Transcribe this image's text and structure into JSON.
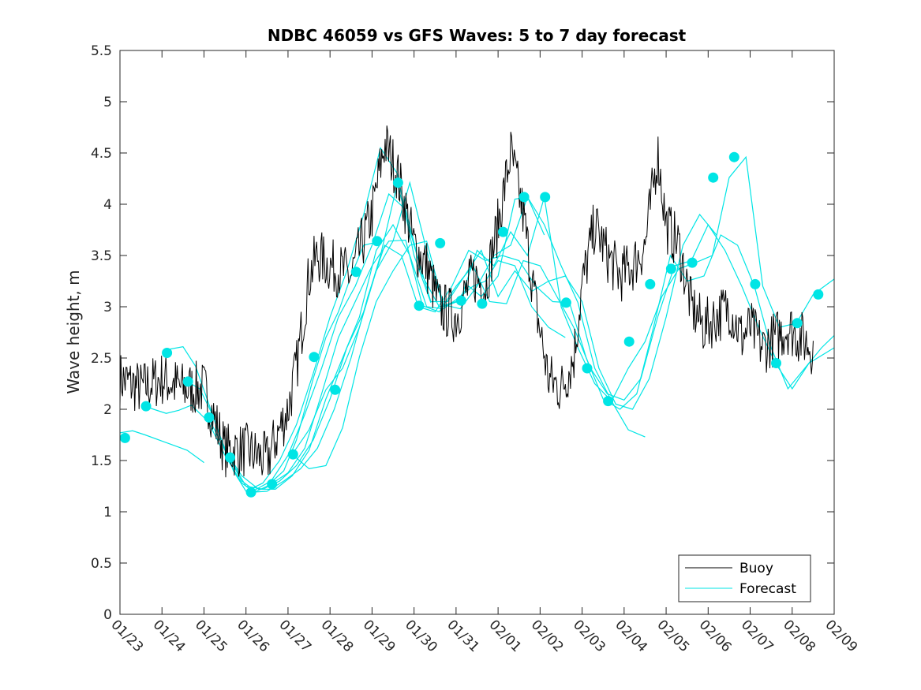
{
  "chart_data": {
    "type": "line",
    "title": "NDBC 46059 vs GFS Waves: 5 to 7 day forecast",
    "xlabel": "",
    "ylabel": "Wave height, m",
    "xlim": [
      0,
      17
    ],
    "ylim": [
      0,
      5.5
    ],
    "grid": false,
    "legend_position": "bottom-right",
    "x_tick_labels": [
      "01/23",
      "01/24",
      "01/25",
      "01/26",
      "01/27",
      "01/28",
      "01/29",
      "01/30",
      "01/31",
      "02/01",
      "02/02",
      "02/03",
      "02/04",
      "02/05",
      "02/06",
      "02/07",
      "02/08",
      "02/09"
    ],
    "y_ticks": [
      0,
      0.5,
      1,
      1.5,
      2,
      2.5,
      3,
      3.5,
      4,
      4.5,
      5,
      5.5
    ],
    "y_tick_labels": [
      "0",
      "0.5",
      "1",
      "1.5",
      "2",
      "2.5",
      "3",
      "3.5",
      "4",
      "4.5",
      "5",
      "5.5"
    ],
    "colors": {
      "buoy": "#000000",
      "forecast": "#00e5e5",
      "axis": "#262626"
    },
    "series": [
      {
        "name": "Buoy",
        "x_days": [
          0,
          0.5,
          1,
          1.5,
          2,
          2.5,
          3,
          3.5,
          4,
          4.2,
          4.5,
          4.7,
          5,
          5.5,
          6,
          6.3,
          6.6,
          7,
          7.3,
          7.6,
          8,
          8.4,
          8.7,
          9,
          9.3,
          9.6,
          9.9,
          10.2,
          10.5,
          10.8,
          11,
          11.3,
          11.6,
          11.9,
          12.2,
          12.5,
          12.8,
          13,
          13.3,
          13.6,
          13.9,
          14.2,
          14.5,
          14.8,
          15,
          15.3,
          15.6,
          15.9,
          16.2,
          16.5
        ],
        "values": [
          2.3,
          2.2,
          2.3,
          2.2,
          2.2,
          1.6,
          1.6,
          1.5,
          2.0,
          2.4,
          3.3,
          3.5,
          3.4,
          3.3,
          3.9,
          4.6,
          4.3,
          3.6,
          3.4,
          3.0,
          2.9,
          3.3,
          3.2,
          3.8,
          4.5,
          3.9,
          3.0,
          2.3,
          2.2,
          2.5,
          3.2,
          3.8,
          3.5,
          3.3,
          3.4,
          3.6,
          4.5,
          3.8,
          3.6,
          3.0,
          2.8,
          2.9,
          3.0,
          2.7,
          2.8,
          2.6,
          2.7,
          2.8,
          2.7,
          2.6
        ]
      }
    ],
    "forecast_runs": [
      {
        "x_days": [
          0,
          0.3,
          0.6,
          1.0,
          1.4,
          1.6,
          2.0
        ],
        "values": [
          1.77,
          1.79,
          1.75,
          1.69,
          1.63,
          1.6,
          1.48
        ]
      },
      {
        "x_days": [
          0.6,
          0.8,
          1.1,
          1.4,
          1.7,
          2.1,
          2.5,
          2.9,
          3.2,
          3.5,
          3.9,
          4.2,
          4.6,
          4.9,
          5.2,
          5.5,
          5.8,
          6.2
        ],
        "values": [
          2.03,
          2.0,
          1.96,
          1.99,
          2.04,
          1.88,
          1.55,
          1.28,
          1.19,
          1.25,
          1.4,
          1.7,
          2.3,
          2.7,
          2.95,
          3.3,
          3.6,
          3.64
        ]
      },
      {
        "x_days": [
          1.1,
          1.5,
          1.8,
          2.1,
          2.4,
          2.7,
          3.0,
          3.4,
          3.8,
          4.2,
          4.6,
          5.0,
          5.4,
          5.8,
          6.2,
          6.6,
          7.0,
          7.4
        ],
        "values": [
          2.58,
          2.61,
          2.42,
          2.07,
          1.72,
          1.4,
          1.2,
          1.28,
          1.5,
          1.85,
          2.35,
          2.9,
          3.35,
          3.9,
          4.55,
          4.3,
          3.5,
          3.04
        ]
      },
      {
        "x_days": [
          1.6,
          1.9,
          2.2,
          2.5,
          2.9,
          3.2,
          3.6,
          4.0,
          4.4,
          4.8,
          5.2,
          5.6,
          6.0,
          6.4,
          6.8,
          7.2,
          7.6,
          8.0,
          8.3,
          8.6,
          9.0,
          9.4,
          9.7,
          10.1
        ],
        "values": [
          2.27,
          2.2,
          1.95,
          1.6,
          1.3,
          1.21,
          1.3,
          1.55,
          1.95,
          2.4,
          2.9,
          3.2,
          3.6,
          4.1,
          3.95,
          3.3,
          3.0,
          3.05,
          3.2,
          3.1,
          3.3,
          4.05,
          4.07,
          3.7
        ]
      },
      {
        "x_days": [
          2.1,
          2.5,
          2.9,
          3.3,
          3.7,
          4.1,
          4.5,
          4.9,
          5.3,
          5.7,
          6.1,
          6.5,
          6.9,
          7.3,
          7.7,
          8.1,
          8.4,
          8.7,
          9.0,
          9.4,
          9.8,
          10.2,
          10.6
        ],
        "values": [
          1.92,
          1.6,
          1.35,
          1.22,
          1.22,
          1.35,
          1.6,
          2.1,
          2.5,
          2.9,
          3.55,
          3.8,
          3.5,
          3.0,
          2.98,
          3.1,
          3.2,
          3.25,
          3.45,
          3.4,
          3.0,
          2.8,
          2.7
        ]
      },
      {
        "x_days": [
          2.6,
          3.0,
          3.4,
          3.8,
          4.2,
          4.6,
          5.0,
          5.4,
          5.8,
          6.2,
          6.6,
          7.0,
          7.4,
          7.8,
          8.2,
          8.6,
          9.0,
          9.4,
          9.8,
          10.2,
          10.6,
          11.0,
          11.4,
          11.8,
          12.2,
          12.6,
          13.0,
          13.4,
          13.8,
          14.2
        ],
        "values": [
          1.53,
          1.25,
          1.22,
          1.3,
          1.45,
          1.7,
          2.1,
          2.6,
          2.95,
          3.5,
          4.2,
          3.6,
          3.05,
          3.05,
          3.3,
          3.55,
          3.1,
          3.35,
          3.15,
          3.25,
          3.3,
          3.05,
          2.4,
          2.05,
          2.0,
          2.3,
          2.9,
          3.6,
          3.9,
          3.7
        ]
      },
      {
        "x_days": [
          3.1,
          3.5,
          3.9,
          4.3,
          4.7,
          5.1,
          5.5,
          5.9,
          6.3,
          6.7,
          7.1,
          7.5,
          7.9,
          8.3,
          8.7,
          9.1,
          9.5,
          9.9,
          10.3,
          10.7,
          11.1,
          11.5,
          11.9,
          12.3,
          12.7,
          13.1,
          13.5,
          13.9,
          14.3,
          14.7,
          15.1,
          15.5,
          15.9,
          16.3,
          16.7,
          17.0
        ],
        "values": [
          1.19,
          1.2,
          1.3,
          1.42,
          1.62,
          2.0,
          2.5,
          3.1,
          3.6,
          3.5,
          3.0,
          2.95,
          3.2,
          3.55,
          3.45,
          3.5,
          3.45,
          3.2,
          3.05,
          3.04,
          2.5,
          2.1,
          2.0,
          2.15,
          2.8,
          3.5,
          3.25,
          3.3,
          3.7,
          3.6,
          3.2,
          2.6,
          2.2,
          2.4,
          2.6,
          2.72
        ]
      },
      {
        "x_days": [
          3.6,
          4.0,
          4.4,
          4.8,
          5.2,
          5.6,
          6.0,
          6.4,
          6.8,
          7.2,
          7.6,
          8.0,
          8.4,
          8.8,
          9.2,
          9.6,
          10.0,
          10.4,
          10.8,
          11.2,
          11.6,
          12.0,
          12.4,
          12.8,
          13.2,
          13.6,
          14.0,
          14.4,
          14.8,
          15.2,
          15.6,
          16.0,
          16.4,
          16.8,
          17.0
        ],
        "values": [
          1.27,
          1.38,
          1.62,
          2.15,
          2.7,
          3.05,
          3.4,
          3.64,
          3.65,
          3.01,
          2.95,
          3.2,
          3.4,
          3.05,
          3.03,
          3.45,
          3.4,
          3.1,
          2.8,
          2.4,
          2.15,
          2.09,
          2.3,
          2.9,
          3.4,
          3.45,
          3.8,
          3.55,
          3.2,
          2.8,
          2.45,
          2.2,
          2.45,
          2.55,
          2.6
        ]
      },
      {
        "x_days": [
          4.1,
          4.5,
          4.9,
          5.3,
          5.7,
          6.1,
          6.5,
          6.9,
          7.3,
          7.7,
          8.1,
          8.5,
          8.9,
          9.3,
          9.7,
          10.1,
          10.5,
          10.9,
          11.3,
          11.7,
          12.1,
          12.5
        ],
        "values": [
          1.56,
          1.42,
          1.45,
          1.82,
          2.51,
          3.05,
          3.35,
          3.6,
          3.64,
          3.02,
          2.98,
          3.2,
          3.5,
          3.6,
          4.07,
          3.8,
          3.4,
          3.04,
          2.4,
          2.08,
          1.8,
          1.73
        ]
      },
      {
        "x_days": [
          4.1,
          4.5,
          4.9,
          5.3,
          5.7,
          6.1,
          6.5,
          6.9,
          7.3,
          7.7,
          8.1,
          8.5,
          8.9,
          9.3,
          9.7,
          10.1,
          10.5,
          10.9,
          11.3,
          11.7,
          12.1,
          12.5,
          12.9,
          13.3,
          13.7,
          14.1,
          14.5,
          14.9,
          15.3,
          15.7,
          16.1,
          16.5,
          17.0
        ],
        "values": [
          1.56,
          1.8,
          2.19,
          2.4,
          2.8,
          3.35,
          3.64,
          4.21,
          3.55,
          3.0,
          3.06,
          3.55,
          3.4,
          3.73,
          3.5,
          4.07,
          3.0,
          2.6,
          2.25,
          2.08,
          2.4,
          2.66,
          3.1,
          3.37,
          3.43,
          3.5,
          4.26,
          4.46,
          3.2,
          2.8,
          2.84,
          3.12,
          3.27
        ]
      }
    ],
    "forecast_markers": {
      "x_days": [
        0.12,
        0.62,
        1.12,
        1.62,
        2.12,
        2.62,
        3.12,
        3.62,
        4.12,
        4.62,
        5.12,
        5.62,
        6.12,
        6.62,
        7.12,
        7.62,
        8.12,
        8.62,
        9.12,
        9.62,
        10.12,
        10.62,
        11.12,
        11.62,
        12.12,
        12.62,
        13.12,
        13.62,
        14.12,
        14.62,
        15.12,
        15.62,
        16.12,
        16.62
      ],
      "values": [
        1.72,
        2.03,
        2.55,
        2.27,
        1.92,
        1.53,
        1.19,
        1.27,
        1.56,
        2.51,
        2.19,
        3.34,
        3.64,
        4.21,
        3.01,
        3.62,
        3.06,
        3.03,
        3.73,
        4.07,
        4.07,
        3.04,
        2.4,
        2.08,
        2.66,
        3.22,
        3.37,
        3.43,
        4.26,
        4.46,
        3.22,
        2.45,
        2.84,
        3.12
      ]
    },
    "legend": [
      {
        "label": "Buoy",
        "color": "#000000"
      },
      {
        "label": "Forecast",
        "color": "#00e5e5"
      }
    ]
  }
}
